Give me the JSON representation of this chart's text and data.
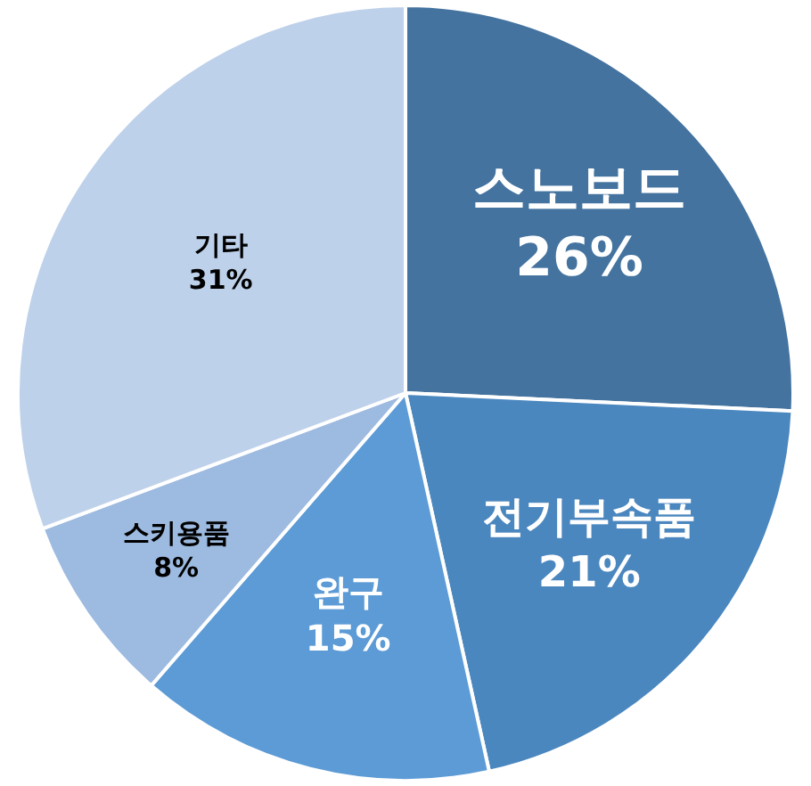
{
  "chart_data": {
    "type": "pie",
    "categories": [
      "스노보드",
      "전기부속품",
      "완구",
      "스키용품",
      "기타"
    ],
    "values": [
      26,
      21,
      15,
      8,
      31
    ],
    "colors": [
      "#44739f",
      "#4b87bf",
      "#5c9bd6",
      "#9dbae0",
      "#bed1ea"
    ],
    "value_labels": [
      "26%",
      "21%",
      "15%",
      "8%",
      "31%"
    ],
    "legend": false
  }
}
